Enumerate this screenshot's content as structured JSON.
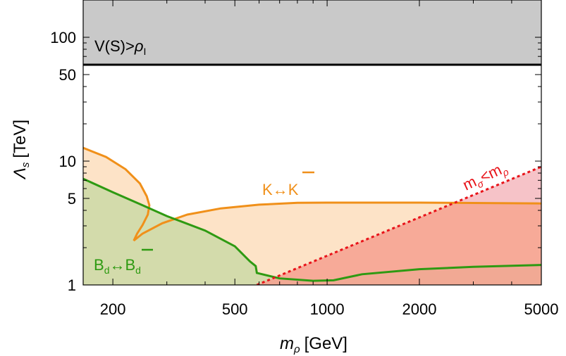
{
  "chart_data": {
    "type": "area",
    "xscale": "log",
    "yscale": "log",
    "xlim": [
      160,
      5000
    ],
    "ylim": [
      1,
      200
    ],
    "xlabel": {
      "main": "m",
      "sub": "ρ",
      "unit": "[GeV]"
    },
    "ylabel": {
      "main": "Λ",
      "sub": "s",
      "unit": "[TeV]"
    },
    "xticks": [
      200,
      500,
      1000,
      2000,
      5000
    ],
    "xtick_labels": [
      "200",
      "500",
      "1000",
      "2000",
      "5000"
    ],
    "yticks": [
      1,
      5,
      10,
      50,
      100
    ],
    "ytick_labels": [
      "1",
      "5",
      "10",
      "50",
      "100"
    ],
    "colors": {
      "gray_fill": "#c9c9c9",
      "orange": "#f0901a",
      "orange_fill": "#fde3c7",
      "green": "#2e9a12",
      "green_fill": "#cbd9a6",
      "red": "#e8141a",
      "red_fill": "#f6a08f",
      "red_light_fill": "#f6c3c8",
      "black": "#000000"
    },
    "series": [
      {
        "id": "gray",
        "lower_bound": 60,
        "annotation": {
          "pre": "V(S)>",
          "rho": "ρ",
          "sub": "I"
        }
      },
      {
        "id": "kk",
        "annotation": {
          "pre": "K↔",
          "bar": "K"
        },
        "points": [
          [
            160,
            12.8
          ],
          [
            190,
            10.8
          ],
          [
            220,
            8.6
          ],
          [
            245,
            6.6
          ],
          [
            258,
            5.2
          ],
          [
            263,
            4.4
          ],
          [
            260,
            3.7
          ],
          [
            250,
            3.05
          ],
          [
            240,
            2.6
          ],
          [
            234,
            2.28
          ],
          [
            250,
            2.6
          ],
          [
            290,
            3.15
          ],
          [
            350,
            3.7
          ],
          [
            450,
            4.15
          ],
          [
            600,
            4.45
          ],
          [
            800,
            4.6
          ],
          [
            1000,
            4.62
          ],
          [
            2000,
            4.62
          ],
          [
            5000,
            4.55
          ]
        ]
      },
      {
        "id": "bd",
        "annotation": {
          "pre": "B",
          "sub": "d",
          "mid": "↔",
          "bar": "B",
          "sub2": "d"
        },
        "points": [
          [
            160,
            7.2
          ],
          [
            200,
            5.6
          ],
          [
            250,
            4.4
          ],
          [
            300,
            3.6
          ],
          [
            400,
            2.75
          ],
          [
            500,
            2.05
          ],
          [
            560,
            1.55
          ],
          [
            585,
            1.42
          ],
          [
            590,
            1.25
          ],
          [
            700,
            1.13
          ],
          [
            900,
            1.08
          ],
          [
            1050,
            1.09
          ],
          [
            1300,
            1.22
          ],
          [
            2000,
            1.34
          ],
          [
            3000,
            1.4
          ],
          [
            5000,
            1.45
          ]
        ]
      },
      {
        "id": "sigma",
        "annotation": {
          "m1": "m",
          "s1": "σ",
          "lt": "<",
          "m2": "m",
          "s2": "ρ"
        },
        "line": [
          [
            590,
            1
          ],
          [
            5000,
            9.0
          ]
        ]
      }
    ]
  }
}
